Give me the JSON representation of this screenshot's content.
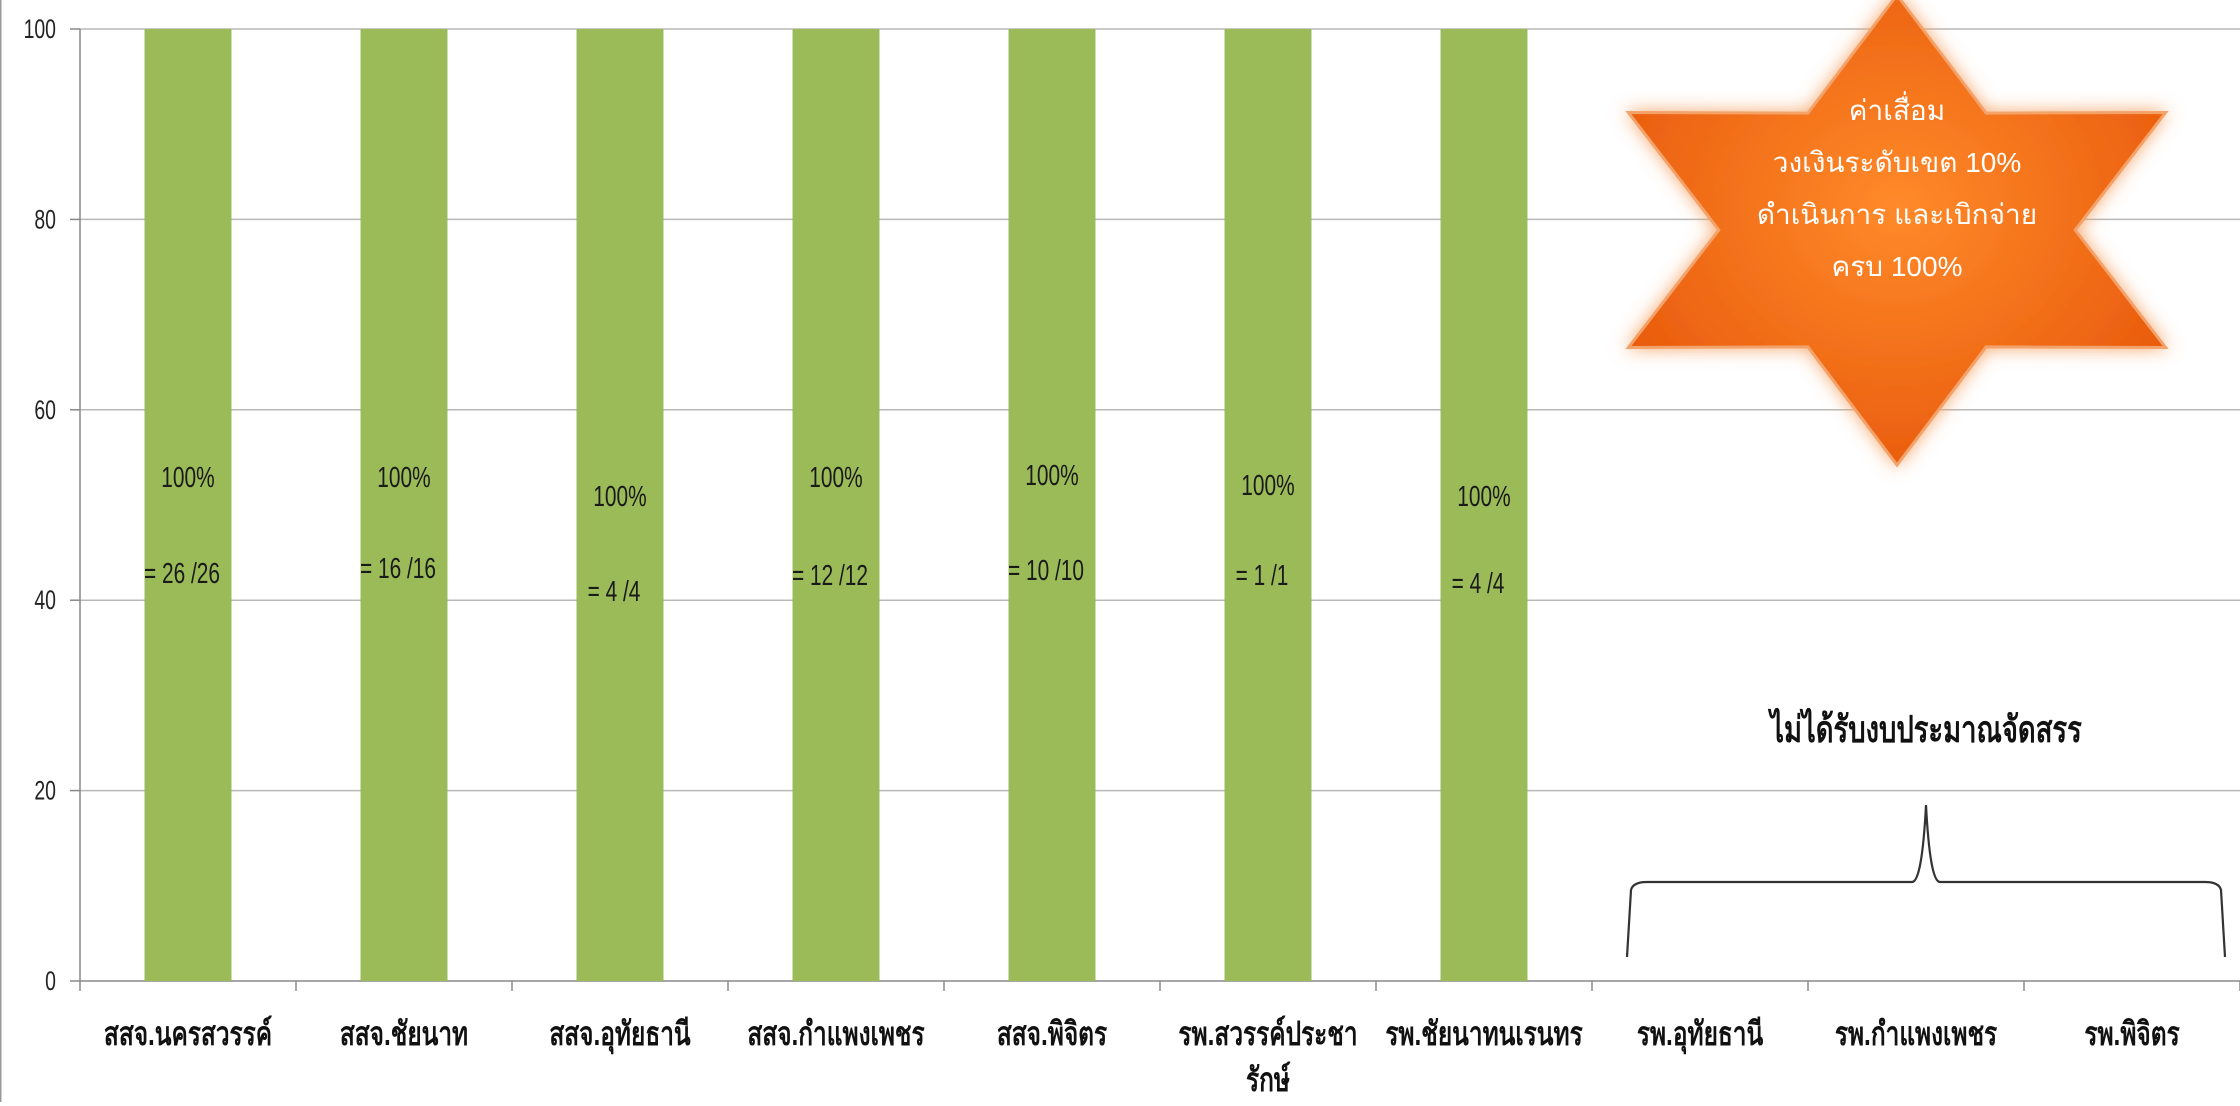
{
  "chart_data": {
    "type": "bar",
    "categories": [
      "สสจ.นครสวรรค์",
      "สสจ.ชัยนาท",
      "สสจ.อุทัยธานี",
      "สสจ.กำแพงเพชร",
      "สสจ.พิจิตร",
      "รพ.สวรรค์ประชารักษ์",
      "รพ.ชัยนาทนเรนทร",
      "รพ.อุทัยธานี",
      "รพ.กำแพงเพชร",
      "รพ.พิจิตร"
    ],
    "category_label_lines": [
      [
        "สสจ.นครสวรรค์"
      ],
      [
        "สสจ.ชัยนาท"
      ],
      [
        "สสจ.อุทัยธานี"
      ],
      [
        "สสจ.กำแพงเพชร"
      ],
      [
        "สสจ.พิจิตร"
      ],
      [
        "รพ.สวรรค์ประชา",
        "รักษ์"
      ],
      [
        "รพ.ชัยนาทนเรนทร"
      ],
      [
        "รพ.อุทัยธานี"
      ],
      [
        "รพ.กำแพงเพชร"
      ],
      [
        "รพ.พิจิตร"
      ]
    ],
    "values": [
      100,
      100,
      100,
      100,
      100,
      100,
      100,
      null,
      null,
      null
    ],
    "data_labels": [
      {
        "percent": "100%",
        "ratio": "= 26 /26"
      },
      {
        "percent": "100%",
        "ratio": "= 16 /16"
      },
      {
        "percent": "100%",
        "ratio": "= 4 /4"
      },
      {
        "percent": "100%",
        "ratio": "= 12 /12"
      },
      {
        "percent": "100%",
        "ratio": "= 10 /10"
      },
      {
        "percent": "100%",
        "ratio": "= 1 /1"
      },
      {
        "percent": "100%",
        "ratio": "= 4 /4"
      },
      null,
      null,
      null
    ],
    "ylim": [
      0,
      100
    ],
    "yticks": [
      0,
      20,
      40,
      60,
      80,
      100
    ],
    "grid": true,
    "title": "",
    "xlabel": "",
    "ylabel": "",
    "bar_color": "#9bbb59",
    "annotations": {
      "star_lines": [
        "ค่าเสื่อม",
        "วงเงินระดับเขต 10%",
        "ดำเนินการ และเบิกจ่าย",
        "ครบ 100%"
      ],
      "star_color": "#f26c14",
      "brace_label": "ไม่ได้รับงบประมาณจัดสรร",
      "brace_span_categories": [
        "รพ.อุทัยธานี",
        "รพ.พิจิตร"
      ]
    }
  }
}
